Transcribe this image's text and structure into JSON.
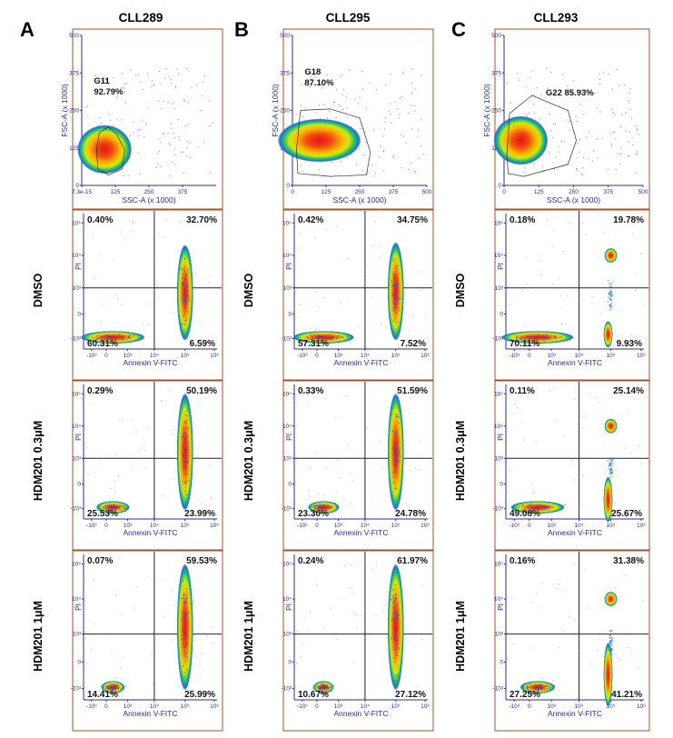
{
  "figure": {
    "panel_letters": [
      "A",
      "B",
      "C"
    ],
    "axis_titles": {
      "scatter_x": "SSC-A (x 1000)",
      "scatter_y": "FSC-A (x 1000)",
      "quad_x": "Annexin V-FITC",
      "quad_y": "PI"
    },
    "scatter_x_ticks": [
      [
        "7.3e-15",
        "125",
        "250",
        "375"
      ],
      [
        "0",
        "125",
        "250",
        "375",
        "500"
      ],
      [
        "0",
        "125",
        "250",
        "375",
        "500"
      ]
    ],
    "scatter_y_ticks": [
      "0",
      "125",
      "250",
      "375",
      "500"
    ],
    "quad_x_ticks": [
      "-10³",
      "0",
      "10³",
      "10⁴",
      "10⁵",
      "10⁶"
    ],
    "quad_y_ticks": [
      "10⁵",
      "10⁴",
      "10³",
      "0",
      "-10³"
    ],
    "row_labels": [
      "DMSO",
      "HDM201 0.3μM",
      "HDM201 1μM"
    ]
  },
  "chart_data": [
    {
      "type": "scatter",
      "title": "CLL289",
      "xlabel": "SSC-A (x 1000)",
      "ylabel": "FSC-A (x 1000)",
      "xlim": [
        0,
        500
      ],
      "ylim": [
        0,
        500
      ],
      "gate": "G11",
      "gate_pct": "92.79%",
      "gate_polygon": [
        [
          60,
          55
        ],
        [
          100,
          35
        ],
        [
          150,
          55
        ],
        [
          160,
          120
        ],
        [
          130,
          170
        ],
        [
          100,
          195
        ],
        [
          65,
          175
        ],
        [
          55,
          120
        ]
      ],
      "population_center": [
        85,
        120
      ],
      "quadrants": {
        "DMSO": {
          "UL": "0.40%",
          "UR": "32.70%",
          "LL": "60.31%",
          "LR": "6.59%"
        },
        "HDM201 0.3μM": {
          "UL": "0.29%",
          "UR": "50.19%",
          "LL": "25.53%",
          "LR": "23.99%"
        },
        "HDM201 1μM": {
          "UL": "0.07%",
          "UR": "59.53%",
          "LL": "14.41%",
          "LR": "25.99%"
        }
      }
    },
    {
      "type": "scatter",
      "title": "CLL295",
      "xlabel": "SSC-A (x 1000)",
      "ylabel": "FSC-A (x 1000)",
      "xlim": [
        0,
        500
      ],
      "ylim": [
        0,
        500
      ],
      "gate": "G18",
      "gate_pct": "87.10%",
      "gate_polygon": [
        [
          20,
          40
        ],
        [
          140,
          30
        ],
        [
          275,
          35
        ],
        [
          290,
          110
        ],
        [
          250,
          225
        ],
        [
          140,
          255
        ],
        [
          30,
          250
        ],
        [
          15,
          120
        ]
      ],
      "population_center": [
        100,
        150
      ],
      "quadrants": {
        "DMSO": {
          "UL": "0.42%",
          "UR": "34.75%",
          "LL": "57.31%",
          "LR": "7.52%"
        },
        "HDM201 0.3μM": {
          "UL": "0.33%",
          "UR": "51.59%",
          "LL": "23.30%",
          "LR": "24.78%"
        },
        "HDM201 1μM": {
          "UL": "0.24%",
          "UR": "61.97%",
          "LL": "10.67%",
          "LR": "27.12%"
        }
      }
    },
    {
      "type": "scatter",
      "title": "CLL293",
      "xlabel": "SSC-A (x 1000)",
      "ylabel": "FSC-A (x 1000)",
      "xlim": [
        0,
        500
      ],
      "ylim": [
        0,
        500
      ],
      "gate": "G22",
      "gate_pct": "85.93%",
      "gate_polygon": [
        [
          15,
          40
        ],
        [
          70,
          30
        ],
        [
          230,
          70
        ],
        [
          260,
          150
        ],
        [
          230,
          250
        ],
        [
          100,
          300
        ],
        [
          20,
          240
        ],
        [
          10,
          100
        ]
      ],
      "population_center": [
        60,
        150
      ],
      "quadrants": {
        "DMSO": {
          "UL": "0.18%",
          "UR": "19.78%",
          "LL": "70.11%",
          "LR": "9.93%"
        },
        "HDM201 0.3μM": {
          "UL": "0.11%",
          "UR": "25.14%",
          "LL": "49.08%",
          "LR": "25.67%"
        },
        "HDM201 1μM": {
          "UL": "0.16%",
          "UR": "31.38%",
          "LL": "27.25%",
          "LR": "41.21%"
        }
      }
    }
  ]
}
